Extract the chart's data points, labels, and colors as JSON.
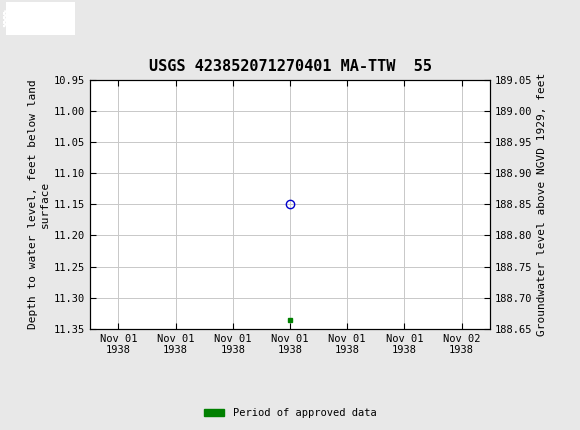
{
  "title": "USGS 423852071270401 MA-TTW  55",
  "header_bg_color": "#1a6b3c",
  "left_ylabel": "Depth to water level, feet below land\nsurface",
  "right_ylabel": "Groundwater level above NGVD 1929, feet",
  "ylim_left_bottom": 11.35,
  "ylim_left_top": 10.95,
  "ylim_right_bottom": 188.65,
  "ylim_right_top": 189.05,
  "yticks_left": [
    10.95,
    11.0,
    11.05,
    11.1,
    11.15,
    11.2,
    11.25,
    11.3,
    11.35
  ],
  "yticks_right": [
    188.65,
    188.7,
    188.75,
    188.8,
    188.85,
    188.9,
    188.95,
    189.0,
    189.05
  ],
  "xlim": [
    -0.5,
    6.5
  ],
  "xtick_positions": [
    0,
    1,
    2,
    3,
    4,
    5,
    6
  ],
  "xtick_labels": [
    "Nov 01\n1938",
    "Nov 01\n1938",
    "Nov 01\n1938",
    "Nov 01\n1938",
    "Nov 01\n1938",
    "Nov 01\n1938",
    "Nov 02\n1938"
  ],
  "data_point_x": 3,
  "data_point_y": 11.15,
  "data_point_color": "#0000cc",
  "data_point_marker_size": 6,
  "approved_x": 3,
  "approved_y": 11.335,
  "approved_color": "#008000",
  "approved_marker_size": 3,
  "legend_label": "Period of approved data",
  "legend_color": "#008000",
  "grid_color": "#c8c8c8",
  "plot_bg_color": "#ffffff",
  "figure_bg_color": "#e8e8e8",
  "title_fontsize": 11,
  "axis_label_fontsize": 8,
  "tick_fontsize": 7.5,
  "font_family": "monospace"
}
